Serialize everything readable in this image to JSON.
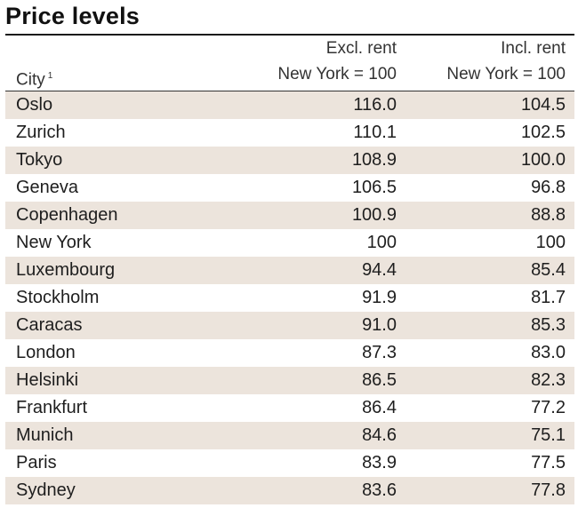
{
  "title": "Price levels",
  "table": {
    "headers": {
      "city": "City",
      "city_footnote": "1",
      "excl_line1": "Excl. rent",
      "excl_line2": "New York = 100",
      "incl_line1": "Incl. rent",
      "incl_line2": "New York = 100"
    },
    "rows": [
      {
        "city": "Oslo",
        "excl": "116.0",
        "incl": "104.5"
      },
      {
        "city": "Zurich",
        "excl": "110.1",
        "incl": "102.5"
      },
      {
        "city": "Tokyo",
        "excl": "108.9",
        "incl": "100.0"
      },
      {
        "city": "Geneva",
        "excl": "106.5",
        "incl": "96.8"
      },
      {
        "city": "Copenhagen",
        "excl": "100.9",
        "incl": "88.8"
      },
      {
        "city": "New York",
        "excl": "100",
        "incl": "100"
      },
      {
        "city": "Luxembourg",
        "excl": "94.4",
        "incl": "85.4"
      },
      {
        "city": "Stockholm",
        "excl": "91.9",
        "incl": "81.7"
      },
      {
        "city": "Caracas",
        "excl": "91.0",
        "incl": "85.3"
      },
      {
        "city": "London",
        "excl": "87.3",
        "incl": "83.0"
      },
      {
        "city": "Helsinki",
        "excl": "86.5",
        "incl": "82.3"
      },
      {
        "city": "Frankfurt",
        "excl": "86.4",
        "incl": "77.2"
      },
      {
        "city": "Munich",
        "excl": "84.6",
        "incl": "75.1"
      },
      {
        "city": "Paris",
        "excl": "83.9",
        "incl": "77.5"
      },
      {
        "city": "Sydney",
        "excl": "83.6",
        "incl": "77.8"
      }
    ]
  },
  "colors": {
    "row_shade": "#ece4dc",
    "text": "#1e1e1e",
    "rule": "#1a1a1a"
  }
}
